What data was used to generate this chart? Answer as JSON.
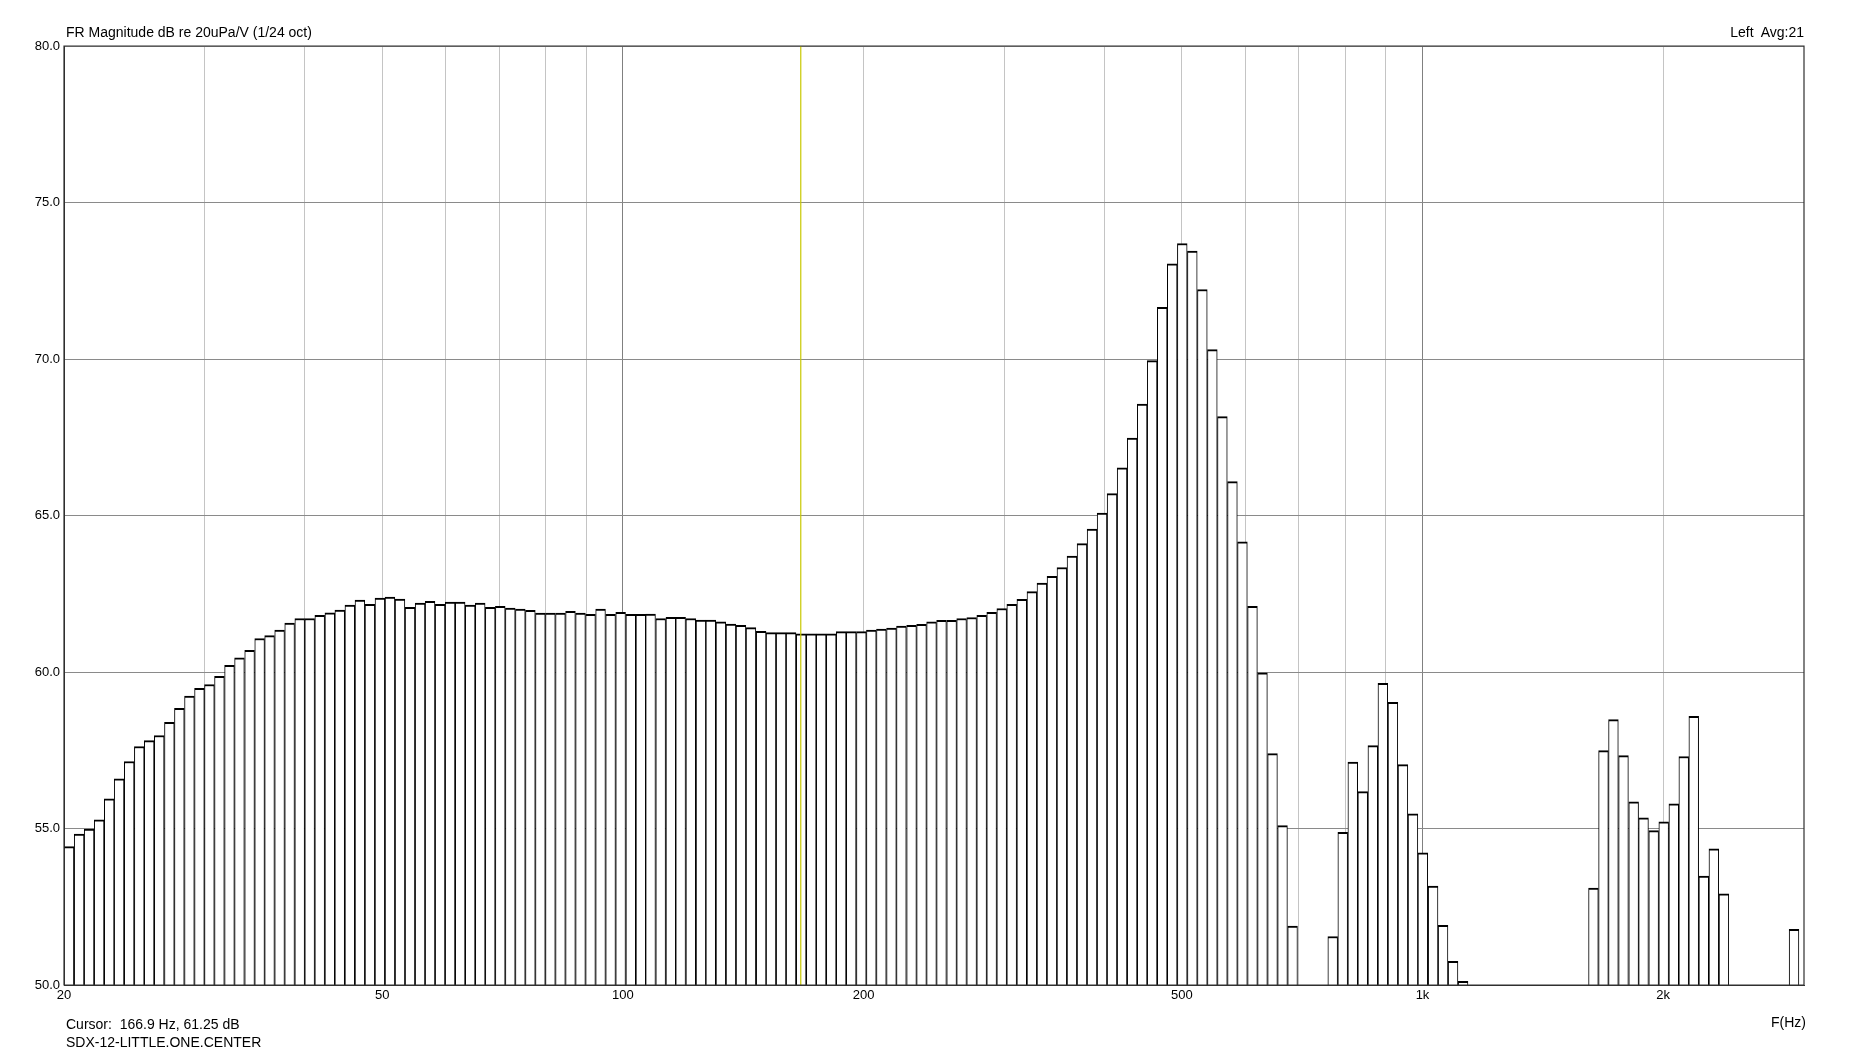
{
  "chart_data": {
    "type": "bar",
    "title": "FR Magnitude dB re 20uPa/V (1/24 oct)",
    "xlabel": "F(Hz)",
    "annotations": [
      "Left  Avg:21",
      "Cursor:  166.9 Hz, 61.25 dB",
      "SDX-12-LITTLE.ONE.CENTER"
    ],
    "x": [
      20.29,
      20.89,
      21.5,
      22.13,
      22.78,
      23.44,
      24.13,
      24.84,
      25.56,
      26.31,
      27.09,
      27.88,
      28.7,
      29.54,
      30.4,
      31.29,
      32.21,
      33.15,
      34.13,
      35.13,
      36.15,
      37.21,
      38.3,
      39.43,
      40.58,
      41.77,
      43.0,
      44.25,
      45.55,
      46.89,
      48.26,
      49.67,
      51.13,
      52.63,
      54.17,
      55.76,
      57.39,
      59.07,
      60.8,
      62.59,
      64.42,
      66.31,
      68.25,
      70.25,
      72.31,
      74.43,
      76.61,
      78.85,
      81.16,
      83.54,
      85.99,
      88.51,
      91.1,
      93.77,
      96.52,
      99.35,
      102.3,
      105.3,
      108.3,
      111.5,
      114.8,
      118.1,
      121.6,
      125.2,
      128.8,
      132.6,
      136.5,
      140.5,
      144.6,
      148.9,
      153.2,
      157.7,
      162.3,
      167.1,
      172.0,
      177.0,
      182.2,
      187.5,
      193.0,
      198.7,
      204.5,
      210.5,
      216.7,
      223.0,
      229.6,
      236.3,
      243.2,
      250.3,
      257.7,
      265.2,
      273.0,
      281.0,
      289.2,
      297.7,
      306.4,
      315.4,
      324.7,
      334.2,
      344.0,
      354.0,
      364.4,
      375.1,
      386.1,
      397.4,
      409.0,
      421.0,
      433.4,
      446.1,
      459.1,
      472.6,
      486.4,
      500.7,
      515.4,
      530.5,
      546.0,
      562.0,
      578.5,
      595.4,
      612.9,
      630.8,
      649.3,
      668.3,
      687.9,
      708.1,
      728.8,
      750.2,
      772.2,
      794.8,
      818.1,
      842.0,
      866.7,
      892.1,
      918.3,
      945.2,
      972.9,
      1001,
      1031,
      1061,
      1092,
      1124,
      1157,
      1191,
      1226,
      1262,
      1299,
      1337,
      1376,
      1416,
      1458,
      1500,
      1544,
      1590,
      1636,
      1684,
      1733,
      1784,
      1837,
      1890,
      1946,
      2003,
      2062,
      2122,
      2184,
      2248,
      2314,
      2382,
      2452,
      2523,
      2597,
      2673,
      2752,
      2832,
      2915
    ],
    "series": [
      {
        "color": "#ffffff",
        "values": [
          54.42,
          54.82,
          54.98,
          55.28,
          55.95,
          56.59,
          57.14,
          57.62,
          57.81,
          57.97,
          58.39,
          58.84,
          59.23,
          59.48,
          59.6,
          59.86,
          60.21,
          60.45,
          60.69,
          61.07,
          61.16,
          61.34,
          61.56,
          61.71,
          61.71,
          61.81,
          61.89,
          61.98,
          62.14,
          62.3,
          62.16,
          62.36,
          62.39,
          62.33,
          62.07,
          62.2,
          62.26,
          62.16,
          62.23,
          62.23,
          62.14,
          62.2,
          62.07,
          62.1,
          62.04,
          62.01,
          61.97,
          61.88,
          61.88,
          61.88,
          61.94,
          61.88,
          61.84,
          62.01,
          61.84,
          61.91,
          61.84,
          61.84,
          61.85,
          61.71,
          61.75,
          61.75,
          61.71,
          61.66,
          61.66,
          61.6,
          61.53,
          61.49,
          61.42,
          61.3,
          61.26,
          61.26,
          61.26,
          61.22,
          61.22,
          61.22,
          61.22,
          61.29,
          61.29,
          61.29,
          61.34,
          61.37,
          61.4,
          61.47,
          61.49,
          61.52,
          61.6,
          61.65,
          61.65,
          61.71,
          61.74,
          61.81,
          61.91,
          62.03,
          62.16,
          62.32,
          62.57,
          62.84,
          63.06,
          63.34,
          63.7,
          64.1,
          64.57,
          65.08,
          65.7,
          66.52,
          67.47,
          68.56,
          69.95,
          71.65,
          73.04,
          73.69,
          73.45,
          72.22,
          70.3,
          68.16,
          66.08,
          64.16,
          62.1,
          59.97,
          57.39,
          55.09,
          51.88,
          null,
          null,
          null,
          51.55,
          54.88,
          57.12,
          56.18,
          57.65,
          59.64,
          59.03,
          57.04,
          55.47,
          54.22,
          53.16,
          51.91,
          50.76,
          50.12,
          null,
          null,
          null,
          null,
          null,
          null,
          null,
          null,
          null,
          null,
          null,
          null,
          53.1,
          57.49,
          58.48,
          57.33,
          55.85,
          55.34,
          54.93,
          55.21,
          55.79,
          57.3,
          58.58,
          53.48,
          54.35,
          52.91,
          null,
          null,
          null,
          null,
          null,
          null,
          51.78
        ]
      }
    ],
    "xlim": [
      20,
      3000
    ],
    "ylim": [
      50,
      80
    ],
    "xticks": [
      20,
      {
        "value": 30,
        "label": null
      },
      {
        "value": 40,
        "label": null
      },
      50,
      {
        "value": 60,
        "label": null
      },
      {
        "value": 70,
        "label": null
      },
      {
        "value": 80,
        "label": null
      },
      {
        "value": 90,
        "label": null
      },
      100,
      200,
      {
        "value": 300,
        "label": null
      },
      {
        "value": 400,
        "label": null
      },
      500,
      {
        "value": 600,
        "label": null
      },
      {
        "value": 700,
        "label": null
      },
      {
        "value": 800,
        "label": null
      },
      {
        "value": 900,
        "label": null
      },
      {
        "value": 1000,
        "label": "1k"
      },
      {
        "value": 2000,
        "label": "2k"
      }
    ],
    "yticks": [
      {
        "value": 50,
        "label": "50.0"
      },
      {
        "value": 55,
        "label": "55.0"
      },
      {
        "value": 60,
        "label": "60.0"
      },
      {
        "value": 65,
        "label": "65.0"
      },
      {
        "value": 70,
        "label": "70.0"
      },
      {
        "value": 75,
        "label": "75.0"
      },
      {
        "value": 80,
        "label": "80.0"
      }
    ],
    "log": "x",
    "grid": true,
    "ref_lines": [
      {
        "axis": "x",
        "value": 166.9,
        "color": "#c8c800"
      }
    ]
  }
}
